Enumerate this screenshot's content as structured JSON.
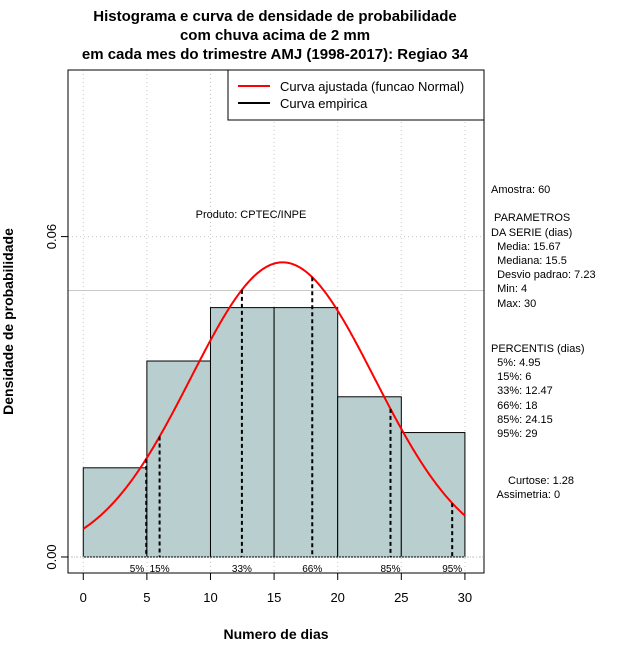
{
  "chart_data": {
    "type": "bar",
    "title_lines": [
      "Histograma e curva de densidade de probabilidade",
      "com chuva acima de 2 mm",
      "em cada mes do trimestre AMJ (1998-2017): Regiao 34"
    ],
    "xlabel": "Numero de dias",
    "ylabel": "Densidade de probabilidade",
    "xlim": [
      -1.2,
      31.5
    ],
    "ylim": [
      -0.003,
      0.0912
    ],
    "x_ticks": [
      0,
      5,
      10,
      15,
      20,
      25,
      30
    ],
    "y_ticks": [
      0.0,
      0.06
    ],
    "y_tick_labels": [
      "0.00",
      "0.06"
    ],
    "bins": [
      {
        "start": 0,
        "end": 5,
        "density": 0.0167
      },
      {
        "start": 5,
        "end": 10,
        "density": 0.0367
      },
      {
        "start": 10,
        "end": 15,
        "density": 0.0467
      },
      {
        "start": 15,
        "end": 20,
        "density": 0.0467
      },
      {
        "start": 20,
        "end": 25,
        "density": 0.03
      },
      {
        "start": 25,
        "end": 30,
        "density": 0.0233
      }
    ],
    "bar_color": "#b9cfcf",
    "normal_curve": {
      "mean": 15.67,
      "sd": 7.23,
      "color": "#ff0000"
    },
    "empirical_line_y": 0.0499,
    "percentile_lines": [
      {
        "x": 4.95,
        "label": "5%"
      },
      {
        "x": 6,
        "label": "15%"
      },
      {
        "x": 12.47,
        "label": "33%"
      },
      {
        "x": 18,
        "label": "66%"
      },
      {
        "x": 24.15,
        "label": "85%"
      },
      {
        "x": 29,
        "label": "95%"
      }
    ],
    "legend": [
      {
        "label": "Curva ajustada (funcao Normal)",
        "color": "#ff0000"
      },
      {
        "label": "Curva empirica",
        "color": "#000000"
      }
    ],
    "product_label": "Produto: CPTEC/INPE",
    "stats_panel": [
      "Amostra: 60",
      " PARAMETROS",
      "DA SERIE (dias)",
      "  Media: 15.67",
      "  Mediana: 15.5",
      "  Desvio padrao: 7.23",
      "  Min: 4",
      "  Max: 30",
      "PERCENTIS (dias)",
      "  5%: 4.95",
      "  15%: 6",
      "  33%: 12.47",
      "  66%: 18",
      "  85%: 24.15",
      "  95%: 29",
      "Curtose: 1.28",
      "  Assimetria: 0"
    ]
  }
}
